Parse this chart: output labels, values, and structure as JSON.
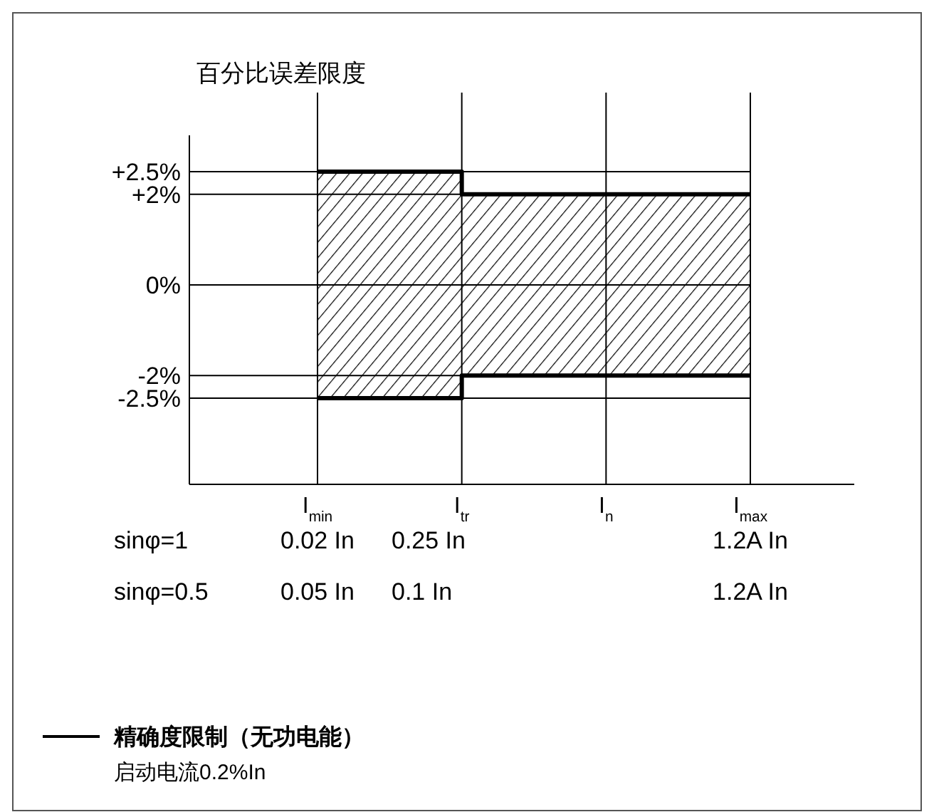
{
  "chart_data": {
    "type": "step",
    "ylabel": "百分比误差限度",
    "categories": [
      "I$_{min}$",
      "I$_{tr}$",
      "I$_{n}$",
      "I$_{max}$"
    ],
    "series": [
      {
        "name": "精确度限制（无功电能）",
        "color": "#000000",
        "values": [
          2.5,
          2,
          2,
          2
        ]
      },
      {
        "color": "#000000",
        "values": [
          -2.5,
          -2,
          -2,
          -2
        ]
      }
    ],
    "ylim": [
      -4.4,
      3.3
    ],
    "yticks": [
      {
        "value": 2.5,
        "label": "+2.5%"
      },
      {
        "value": 2,
        "label": "+2%"
      },
      {
        "value": 0,
        "label": "0%"
      },
      {
        "value": -2,
        "label": "-2%"
      },
      {
        "value": -2.5,
        "label": "-2.5%"
      }
    ],
    "grid": true,
    "legend": "bottom left",
    "annotations": [
      "sinφ=1",
      "0.02 In",
      "0.25 In",
      "1.2A In",
      "sinφ=0.5",
      "0.05 In",
      "0.1 In",
      "1.2A In",
      "启动电流0.2%In"
    ]
  }
}
